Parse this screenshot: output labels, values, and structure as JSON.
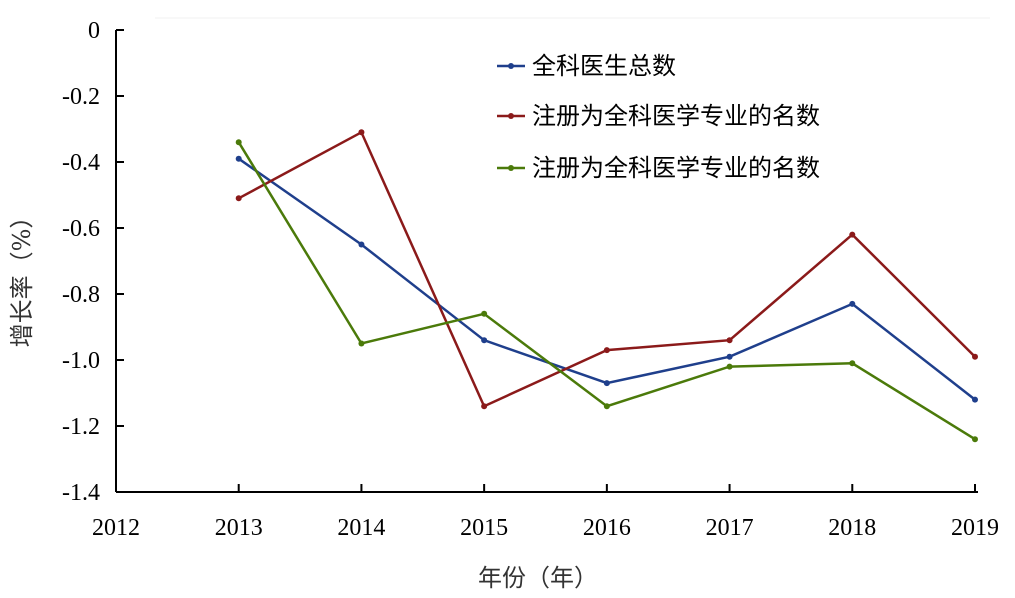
{
  "chart_data": {
    "type": "line",
    "title": "",
    "xlabel": "年份（年）",
    "ylabel": "增长率（%）",
    "x": [
      2013,
      2014,
      2015,
      2016,
      2017,
      2018,
      2019
    ],
    "xticks": [
      "2012",
      "2013",
      "2014",
      "2015",
      "2016",
      "2017",
      "2018",
      "2019"
    ],
    "xlim": [
      2012,
      2019
    ],
    "yticks": [
      "0",
      "-0.2",
      "-0.4",
      "-0.6",
      "-0.8",
      "-1.0",
      "-1.2",
      "-1.4"
    ],
    "ylim": [
      -1.4,
      0
    ],
    "grid": false,
    "legend_position": "top-right",
    "series": [
      {
        "name": "全科医生总数",
        "color": "#1f3f8c",
        "values": [
          -0.39,
          -0.65,
          -0.94,
          -1.07,
          -0.99,
          -0.83,
          -1.12
        ]
      },
      {
        "name": "注册为全科医学专业的名数",
        "color": "#8b1a1a",
        "values": [
          -0.51,
          -0.31,
          -1.14,
          -0.97,
          -0.94,
          -0.62,
          -0.99
        ]
      },
      {
        "name": "注册为全科医学专业的名数",
        "color": "#4b7a0a",
        "values": [
          -0.34,
          -0.95,
          -0.86,
          -1.14,
          -1.02,
          -1.01,
          -1.24
        ]
      }
    ]
  }
}
